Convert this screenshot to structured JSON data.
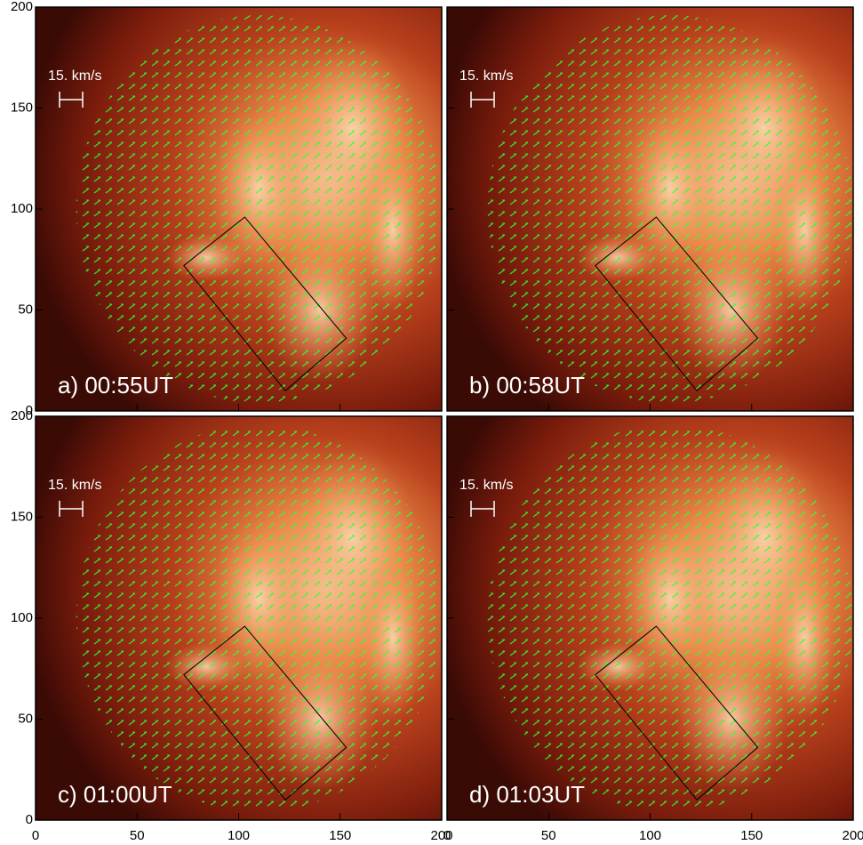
{
  "chart_data": [
    {
      "type": "image",
      "label": "a) 00:55UT",
      "scale_label": "15. km/s",
      "xlim": [
        0,
        200
      ],
      "ylim": [
        0,
        200
      ],
      "xticks": [
        0,
        50,
        100,
        150,
        200
      ],
      "yticks": [
        0,
        50,
        100,
        150,
        200
      ],
      "box": {
        "x": [
          73,
          103,
          153,
          123
        ],
        "y": [
          72,
          96,
          36,
          10
        ]
      }
    },
    {
      "type": "image",
      "label": "b) 00:58UT",
      "scale_label": "15. km/s",
      "xlim": [
        0,
        200
      ],
      "ylim": [
        0,
        200
      ],
      "xticks": [
        0,
        50,
        100,
        150,
        200
      ],
      "yticks": [
        0,
        50,
        100,
        150,
        200
      ],
      "box": {
        "x": [
          73,
          103,
          153,
          123
        ],
        "y": [
          72,
          96,
          36,
          10
        ]
      }
    },
    {
      "type": "image",
      "label": "c) 01:00UT",
      "scale_label": "15. km/s",
      "xlim": [
        0,
        200
      ],
      "ylim": [
        0,
        200
      ],
      "xticks": [
        0,
        50,
        100,
        150,
        200
      ],
      "yticks": [
        0,
        50,
        100,
        150,
        200
      ],
      "box": {
        "x": [
          73,
          103,
          153,
          123
        ],
        "y": [
          72,
          96,
          36,
          10
        ]
      }
    },
    {
      "type": "image",
      "label": "d) 01:03UT",
      "scale_label": "15. km/s",
      "xlim": [
        0,
        200
      ],
      "ylim": [
        0,
        200
      ],
      "xticks": [
        0,
        50,
        100,
        150,
        200
      ],
      "yticks": [
        0,
        50,
        100,
        150,
        200
      ],
      "box": {
        "x": [
          73,
          103,
          153,
          123
        ],
        "y": [
          72,
          96,
          36,
          10
        ]
      }
    }
  ]
}
